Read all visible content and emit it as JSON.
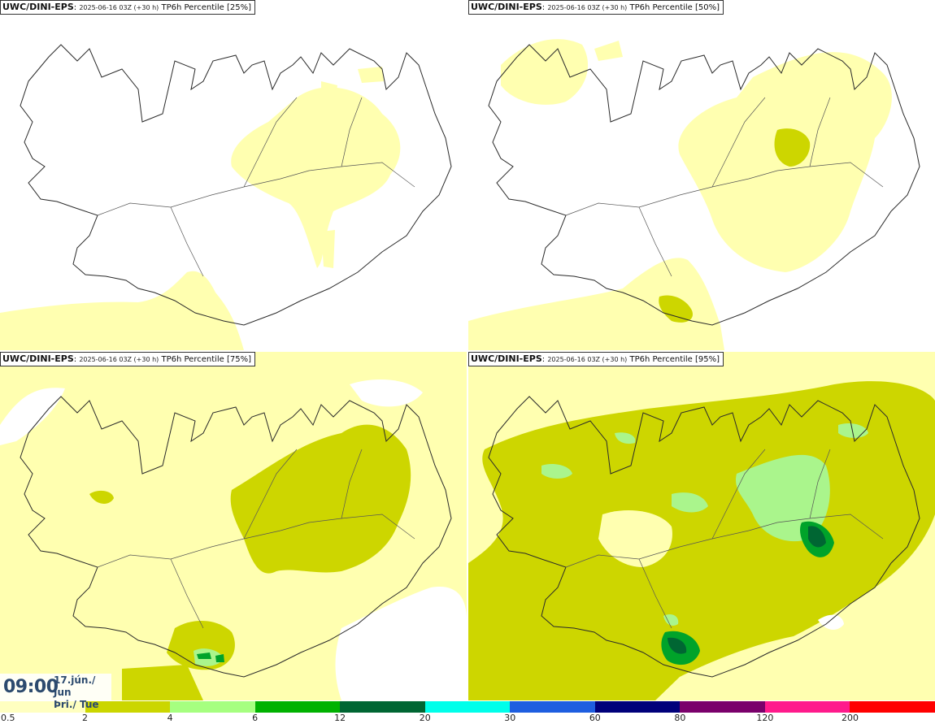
{
  "panels": [
    {
      "model": "UWC/DINI-EPS",
      "run": "2025-06-16 03Z (+30 h)",
      "product": "TP6h Percentile [25%]"
    },
    {
      "model": "UWC/DINI-EPS",
      "run": "2025-06-16 03Z (+30 h)",
      "product": "TP6h Percentile [50%]"
    },
    {
      "model": "UWC/DINI-EPS",
      "run": "2025-06-16 03Z (+30 h)",
      "product": "TP6h Percentile [75%]"
    },
    {
      "model": "UWC/DINI-EPS",
      "run": "2025-06-16 03Z (+30 h)",
      "product": "TP6h Percentile [95%]"
    }
  ],
  "valid_time": {
    "clock": "09:00",
    "date_line1": "17.jún./ Jun",
    "date_line2": "Þri./ Tue"
  },
  "legend": {
    "labels": [
      "0.5",
      "2",
      "4",
      "6",
      "12",
      "20",
      "30",
      "60",
      "80",
      "120",
      "200"
    ],
    "colors": [
      "#ffffc0",
      "#cbd600",
      "#a6ff80",
      "#00b200",
      "#006633",
      "#00ffea",
      "#1e5ee0",
      "#00007a",
      "#7a006b",
      "#ff1a8c",
      "#ff0000"
    ]
  },
  "colors": {
    "outline": "#2a2a2a",
    "level1": "#ffffb0",
    "level2": "#cdd600",
    "level3": "#aaf58c",
    "level4": "#00a32a",
    "level5": "#006633"
  }
}
